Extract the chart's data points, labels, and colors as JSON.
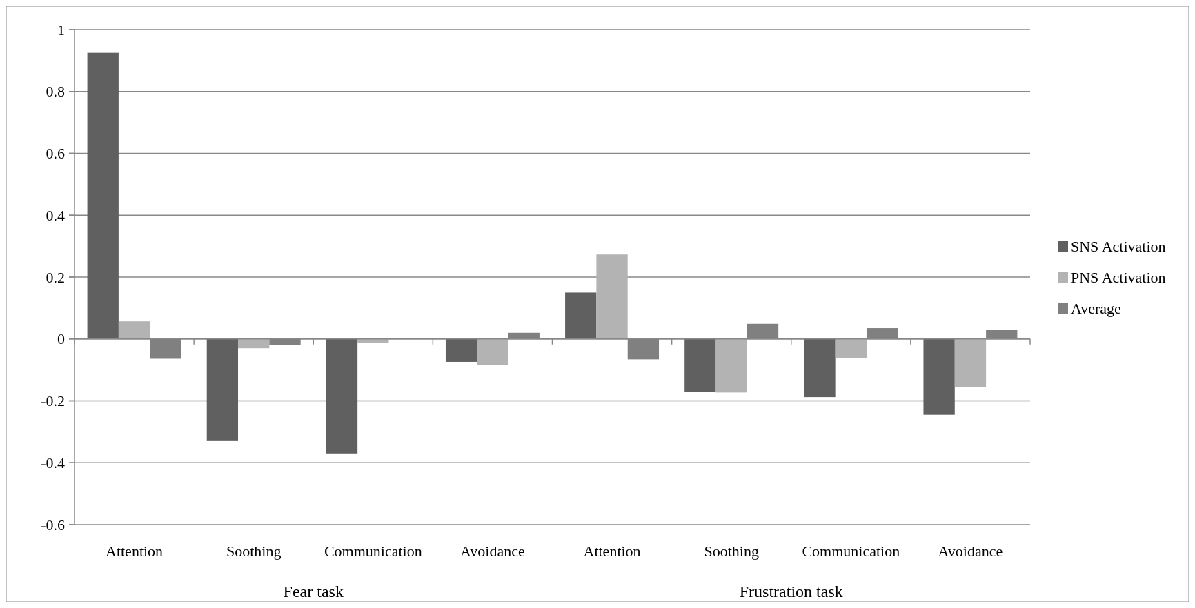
{
  "chart_data": {
    "type": "bar",
    "categories": [
      "Attention",
      "Soothing",
      "Communication",
      "Avoidance",
      "Attention",
      "Soothing",
      "Communication",
      "Avoidance"
    ],
    "series": [
      {
        "name": "SNS Activation",
        "color": "#606060",
        "values": [
          0.925,
          -0.33,
          -0.37,
          -0.074,
          0.15,
          -0.172,
          -0.188,
          -0.245
        ]
      },
      {
        "name": "PNS Activation",
        "color": "#b3b3b3",
        "values": [
          0.057,
          -0.03,
          -0.012,
          -0.084,
          0.273,
          -0.173,
          -0.062,
          -0.155
        ]
      },
      {
        "name": "Average",
        "color": "#808080",
        "values": [
          -0.064,
          -0.02,
          0,
          0.02,
          -0.066,
          0.049,
          0.035,
          0.03
        ]
      }
    ],
    "ylim": [
      -0.6,
      1
    ],
    "yticks": [
      -0.6,
      -0.4,
      -0.2,
      0,
      0.2,
      0.4,
      0.6,
      0.8,
      1
    ],
    "grid": "y",
    "legend": "right",
    "annotations": [
      "Fear task",
      "Frustration task"
    ]
  }
}
